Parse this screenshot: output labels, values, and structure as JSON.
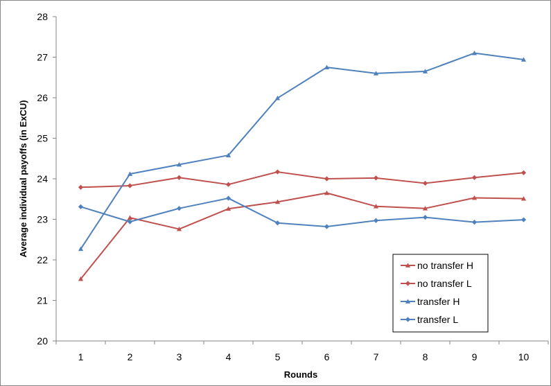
{
  "chart_data": {
    "type": "line",
    "title": "",
    "xlabel": "Rounds",
    "ylabel": "Average individual payoffs (in ExCU)",
    "x": [
      1,
      2,
      3,
      4,
      5,
      6,
      7,
      8,
      9,
      10
    ],
    "xticks": [
      "1",
      "2",
      "3",
      "4",
      "5",
      "6",
      "7",
      "8",
      "9",
      "10"
    ],
    "ylim": [
      20,
      28
    ],
    "yticks": [
      "20",
      "21",
      "22",
      "23",
      "24",
      "25",
      "26",
      "27",
      "28"
    ],
    "grid": false,
    "legend_position": "bottom-right",
    "series": [
      {
        "name": "no transfer H",
        "color": "#C0504D",
        "marker": "triangle",
        "values": [
          21.53,
          23.04,
          22.76,
          23.26,
          23.43,
          23.65,
          23.32,
          23.27,
          23.53,
          23.51
        ]
      },
      {
        "name": "no transfer L",
        "color": "#C0504D",
        "marker": "diamond",
        "values": [
          23.79,
          23.83,
          24.03,
          23.86,
          24.17,
          24.0,
          24.02,
          23.89,
          24.03,
          24.15
        ]
      },
      {
        "name": "transfer H",
        "color": "#4F81BD",
        "marker": "triangle",
        "values": [
          22.27,
          24.12,
          24.35,
          24.58,
          25.99,
          26.75,
          26.6,
          26.65,
          27.1,
          26.94
        ]
      },
      {
        "name": "transfer L",
        "color": "#4F81BD",
        "marker": "diamond",
        "values": [
          23.31,
          22.94,
          23.27,
          23.52,
          22.91,
          22.82,
          22.97,
          23.05,
          22.93,
          22.99
        ]
      }
    ]
  }
}
